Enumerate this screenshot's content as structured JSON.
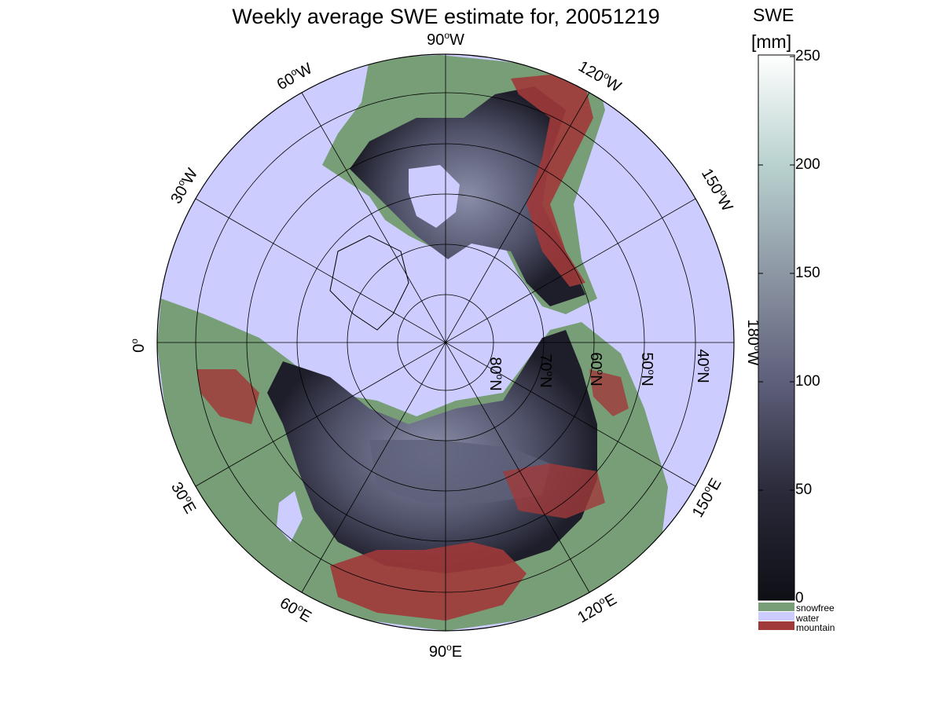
{
  "title": "Weekly average SWE estimate for, 20051219",
  "lon_labels": [
    {
      "deg": "90",
      "dir": "W"
    },
    {
      "deg": "120",
      "dir": "W"
    },
    {
      "deg": "60",
      "dir": "W"
    },
    {
      "deg": "150",
      "dir": "W"
    },
    {
      "deg": "30",
      "dir": "W"
    },
    {
      "deg": "0",
      "dir": ""
    },
    {
      "deg": "180",
      "dir": "W"
    },
    {
      "deg": "30",
      "dir": "E"
    },
    {
      "deg": "150",
      "dir": "E"
    },
    {
      "deg": "60",
      "dir": "E"
    },
    {
      "deg": "120",
      "dir": "E"
    },
    {
      "deg": "90",
      "dir": "E"
    }
  ],
  "lat_labels": [
    {
      "deg": "80",
      "dir": "N"
    },
    {
      "deg": "70",
      "dir": "N"
    },
    {
      "deg": "60",
      "dir": "N"
    },
    {
      "deg": "50",
      "dir": "N"
    },
    {
      "deg": "40",
      "dir": "N"
    }
  ],
  "colorbar": {
    "title_line1": "SWE",
    "title_line2": "[mm]",
    "ticks": [
      "250",
      "200",
      "150",
      "100",
      "50",
      "0"
    ],
    "range": [
      0,
      250
    ]
  },
  "legend": {
    "snowfree": "snowfree",
    "water": "water",
    "mountain": "mountain"
  },
  "colors": {
    "water": "#ccccff",
    "snowfree": "#779e77",
    "mountain": "#a0393a",
    "swe_low": "#0f0f16",
    "swe_mid": "#6a6c86",
    "swe_high": "#ffffff"
  }
}
